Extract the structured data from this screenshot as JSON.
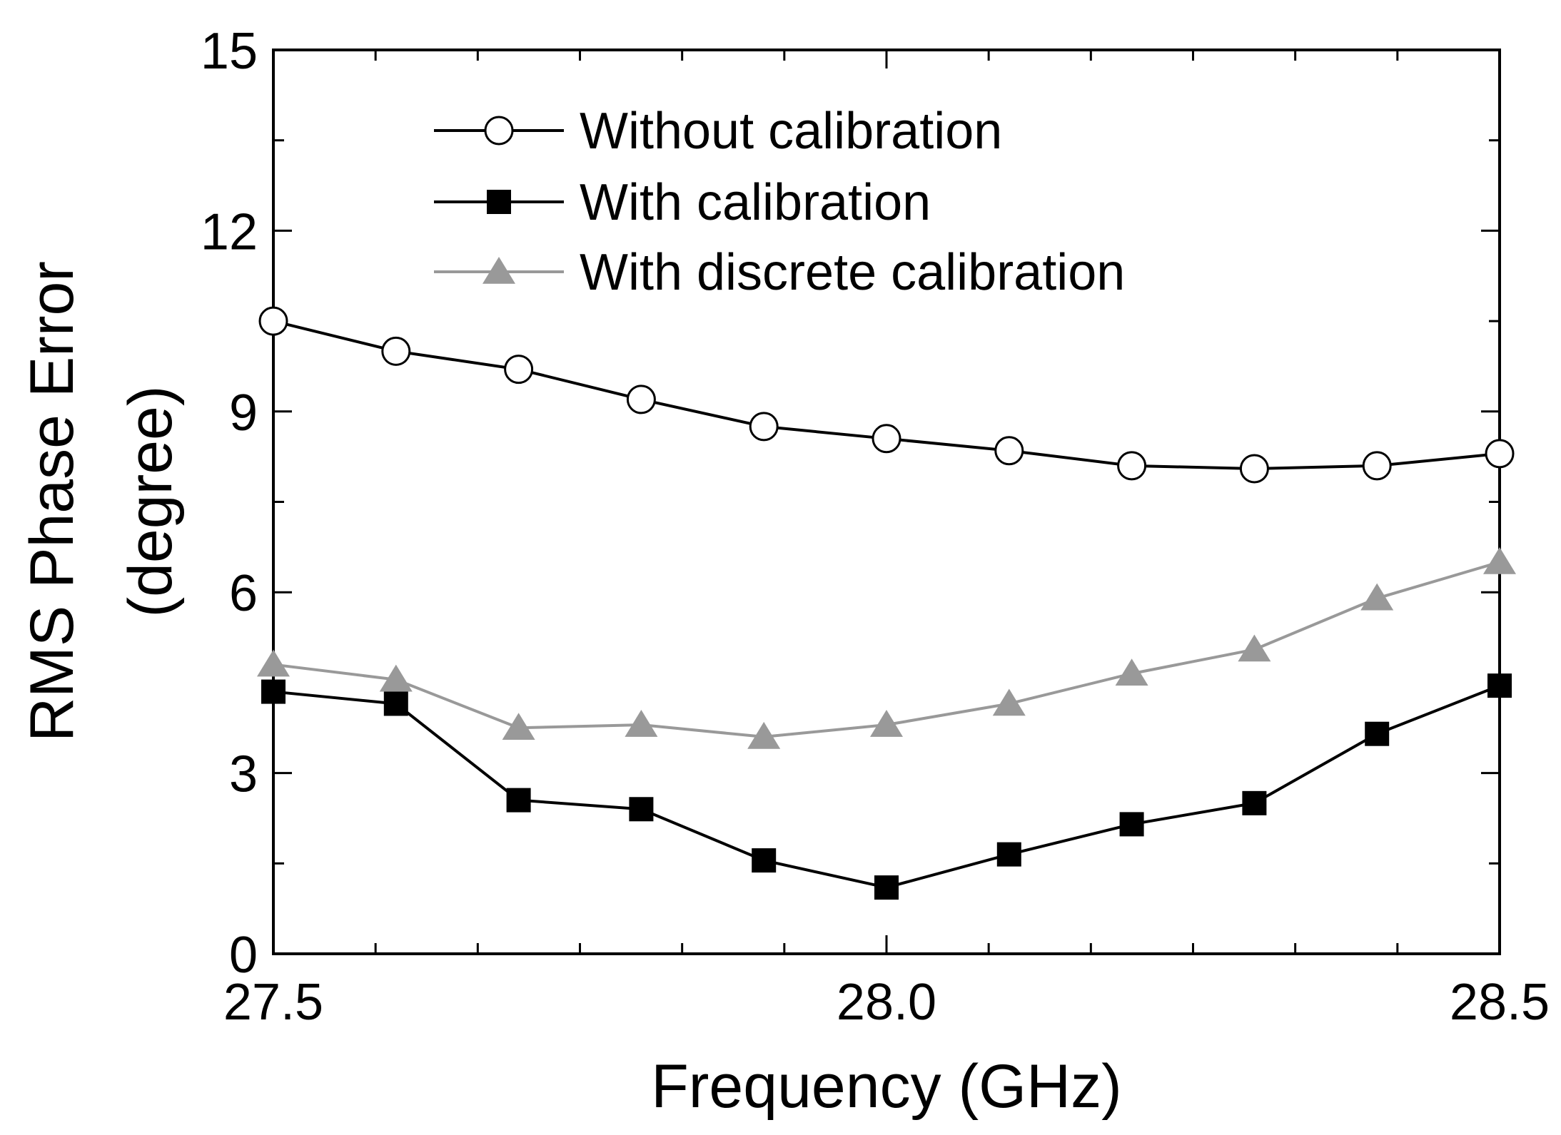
{
  "chart_data": {
    "type": "line",
    "title": "",
    "xlabel": "Frequency (GHz)",
    "ylabel_line1": "RMS Phase Error",
    "ylabel_line2": "(degree)",
    "xlim": [
      27.5,
      28.5
    ],
    "ylim": [
      0,
      15
    ],
    "xticks": [
      27.5,
      28.0,
      28.5
    ],
    "xtick_labels": [
      "27.5",
      "28.0",
      "28.5"
    ],
    "xminor_step": 0.0833,
    "yticks": [
      0,
      3,
      6,
      9,
      12,
      15
    ],
    "ytick_labels": [
      "0",
      "3",
      "6",
      "9",
      "12",
      "15"
    ],
    "yminor_step": 1.5,
    "grid": false,
    "legend_position": "top-center",
    "x": [
      27.5,
      27.6,
      27.7,
      27.8,
      27.9,
      28.0,
      28.1,
      28.2,
      28.3,
      28.4,
      28.5
    ],
    "series": [
      {
        "name": "Without calibration",
        "marker": "open-circle",
        "color": "#000000",
        "values": [
          10.5,
          10.0,
          9.7,
          9.2,
          8.75,
          8.55,
          8.35,
          8.1,
          8.05,
          8.1,
          8.3
        ]
      },
      {
        "name": "With calibration",
        "marker": "filled-square",
        "color": "#000000",
        "values": [
          4.35,
          4.15,
          2.55,
          2.4,
          1.55,
          1.1,
          1.65,
          2.15,
          2.5,
          3.65,
          4.45
        ]
      },
      {
        "name": "With discrete calibration",
        "marker": "filled-triangle",
        "color": "#999999",
        "values": [
          4.8,
          4.55,
          3.75,
          3.8,
          3.6,
          3.8,
          4.15,
          4.65,
          5.05,
          5.9,
          6.5
        ]
      }
    ]
  }
}
